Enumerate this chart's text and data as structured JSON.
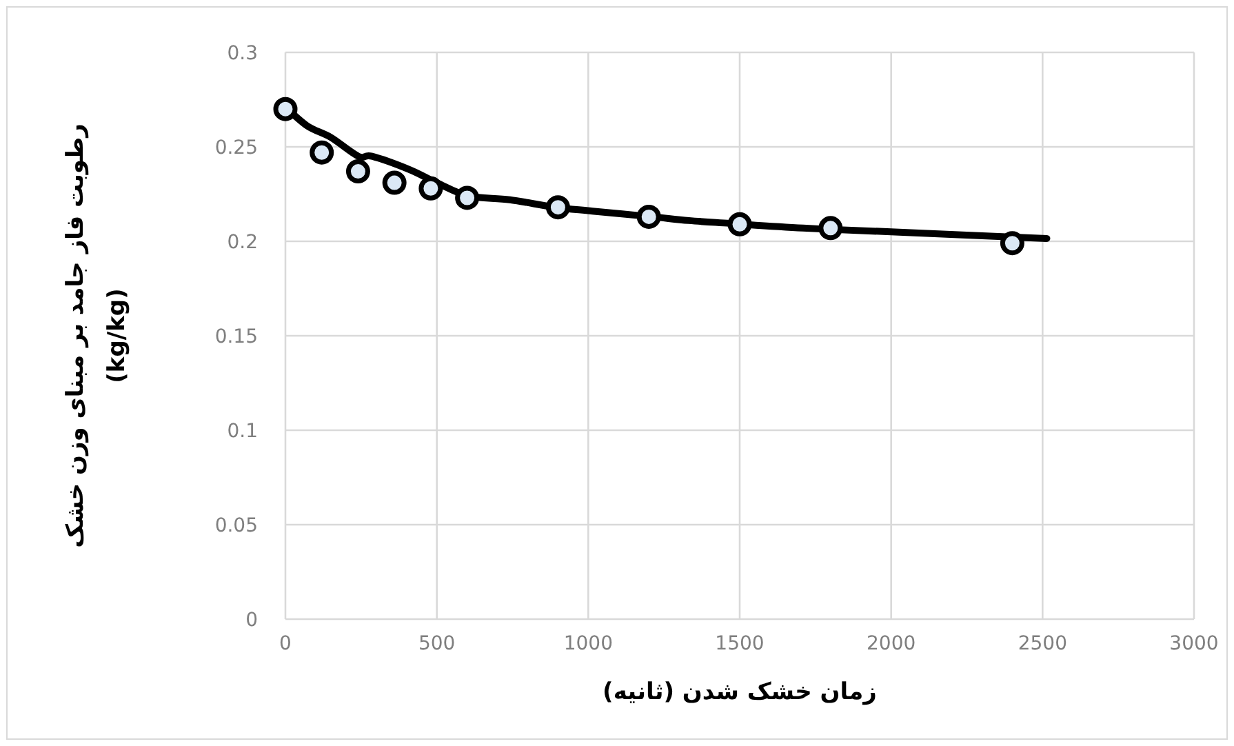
{
  "chart_data": {
    "type": "scatter",
    "xlabel": "زمان خشک شدن (ثانیه)",
    "ylabel": "رطوبت فاز جامد بر مبنای وزن خشک\n(kg/kg)",
    "series": [
      {
        "type": "line",
        "color": "#000000",
        "marker": "none",
        "x": [
          0,
          73,
          150,
          241,
          286,
          409,
          500,
          605,
          741,
          891,
          1014,
          1209,
          1332,
          1468,
          1709,
          2000,
          2514
        ],
        "values": [
          0.271,
          0.261,
          0.255,
          0.245,
          0.245,
          0.238,
          0.231,
          0.224,
          0.222,
          0.218,
          0.216,
          0.213,
          0.211,
          0.2095,
          0.207,
          0.205,
          0.2015
        ]
      },
      {
        "color": "#dbe8f5",
        "marker": "circle",
        "x": [
          0,
          120,
          240,
          360,
          480,
          600,
          900,
          1200,
          1500,
          1800,
          2400
        ],
        "values": [
          0.27,
          0.247,
          0.237,
          0.231,
          0.228,
          0.223,
          0.218,
          0.213,
          0.209,
          0.207,
          0.199
        ]
      }
    ],
    "xlim": [
      0,
      3000
    ],
    "xticks": [
      0,
      500,
      1000,
      1500,
      2000,
      2500,
      3000
    ],
    "ylim": [
      0,
      0.3
    ],
    "yticks": [
      0,
      0.05,
      0.1,
      0.15,
      0.2,
      0.25,
      0.3
    ],
    "grid": true
  }
}
